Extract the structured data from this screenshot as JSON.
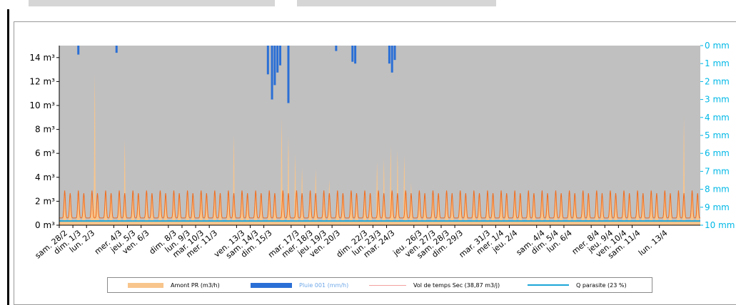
{
  "chart_data": {
    "type": "area",
    "title": "",
    "xlabel": "",
    "ylabel": "",
    "ylim": [
      0,
      15
    ],
    "ylim_secondary": [
      0,
      10
    ],
    "secondary_axis_inverted": true,
    "plot_background": "#c0c0c0",
    "legend_position": "bottom",
    "y_ticks": [
      "0 m³",
      "2 m³",
      "4 m³",
      "6 m³",
      "8 m³",
      "10 m³",
      "12 m³",
      "14 m³"
    ],
    "y_tick_values": [
      0,
      2,
      4,
      6,
      8,
      10,
      12,
      14
    ],
    "y2_ticks": [
      "0 mm",
      "1 mm",
      "2 mm",
      "3 mm",
      "4 mm",
      "5 mm",
      "6 mm",
      "7 mm",
      "8 mm",
      "9 mm",
      "10 mm"
    ],
    "y2_tick_values": [
      0,
      1,
      2,
      3,
      4,
      5,
      6,
      7,
      8,
      9,
      10
    ],
    "x_range_days": 47,
    "x_ticks": [
      {
        "label": "sam. 28/2",
        "day": 0
      },
      {
        "label": "dim. 1/3",
        "day": 1
      },
      {
        "label": "lun. 2/3",
        "day": 2
      },
      {
        "label": "mer. 4/3",
        "day": 4
      },
      {
        "label": "jeu. 5/3",
        "day": 5
      },
      {
        "label": "ven. 6/3",
        "day": 6
      },
      {
        "label": "dim. 8/3",
        "day": 8
      },
      {
        "label": "lun. 9/3",
        "day": 9
      },
      {
        "label": "mar. 10/3",
        "day": 10
      },
      {
        "label": "mer. 11/3",
        "day": 11
      },
      {
        "label": "ven. 13/3",
        "day": 13
      },
      {
        "label": "sam. 14/3",
        "day": 14
      },
      {
        "label": "dim. 15/3",
        "day": 15
      },
      {
        "label": "mar. 17/3",
        "day": 17
      },
      {
        "label": "mer. 18/3",
        "day": 18
      },
      {
        "label": "jeu. 19/3",
        "day": 19
      },
      {
        "label": "ven. 20/3",
        "day": 20
      },
      {
        "label": "dim. 22/3",
        "day": 22
      },
      {
        "label": "lun. 23/3",
        "day": 23
      },
      {
        "label": "mar. 24/3",
        "day": 24
      },
      {
        "label": "jeu. 26/3",
        "day": 26
      },
      {
        "label": "ven. 27/3",
        "day": 27
      },
      {
        "label": "sam. 28/3",
        "day": 28
      },
      {
        "label": "dim. 29/3",
        "day": 29
      },
      {
        "label": "mar. 31/3",
        "day": 31
      },
      {
        "label": "mer. 1/4",
        "day": 32
      },
      {
        "label": "jeu. 2/4",
        "day": 33
      },
      {
        "label": "sam. 4/4",
        "day": 35
      },
      {
        "label": "dim. 5/4",
        "day": 36
      },
      {
        "label": "lun. 6/4",
        "day": 37
      },
      {
        "label": "mer. 8/4",
        "day": 39
      },
      {
        "label": "jeu. 9/4",
        "day": 40
      },
      {
        "label": "ven. 10/4",
        "day": 41
      },
      {
        "label": "sam. 11/4",
        "day": 42
      },
      {
        "label": "lun. 13/4",
        "day": 44
      }
    ],
    "series": [
      {
        "name": "Amont PR (m3/h)",
        "kind": "area",
        "axis": "left",
        "color": "#f8c58c",
        "baseline_daily_peak": 2.9,
        "peaks": [
          {
            "day": 2.6,
            "value": 12.6
          },
          {
            "day": 4.8,
            "value": 7.1
          },
          {
            "day": 12.8,
            "value": 7.6
          },
          {
            "day": 16.3,
            "value": 9.0
          },
          {
            "day": 16.8,
            "value": 7.5
          },
          {
            "day": 17.3,
            "value": 6.0
          },
          {
            "day": 17.8,
            "value": 4.8
          },
          {
            "day": 18.8,
            "value": 4.7
          },
          {
            "day": 19.8,
            "value": 3.8
          },
          {
            "day": 23.3,
            "value": 5.3
          },
          {
            "day": 23.8,
            "value": 5.6
          },
          {
            "day": 24.3,
            "value": 6.6
          },
          {
            "day": 24.8,
            "value": 6.3
          },
          {
            "day": 25.3,
            "value": 5.8
          },
          {
            "day": 25.8,
            "value": 3.6
          },
          {
            "day": 45.8,
            "value": 9.1
          }
        ]
      },
      {
        "name": "Pluie 001 (mm/h)",
        "kind": "bars-from-top",
        "axis": "right",
        "color": "#2a6fd6",
        "events": [
          {
            "day": 1.4,
            "value": 0.5
          },
          {
            "day": 4.2,
            "value": 0.4
          },
          {
            "day": 15.3,
            "value": 1.6
          },
          {
            "day": 15.6,
            "value": 3.0
          },
          {
            "day": 15.8,
            "value": 2.2
          },
          {
            "day": 16.0,
            "value": 1.5
          },
          {
            "day": 16.2,
            "value": 1.1
          },
          {
            "day": 16.8,
            "value": 3.2
          },
          {
            "day": 20.3,
            "value": 0.3
          },
          {
            "day": 21.5,
            "value": 0.9
          },
          {
            "day": 21.7,
            "value": 1.0
          },
          {
            "day": 24.2,
            "value": 1.0
          },
          {
            "day": 24.4,
            "value": 1.5
          },
          {
            "day": 24.6,
            "value": 0.8
          }
        ]
      },
      {
        "name": "Vol de temps Sec (38,87 m3/j)",
        "kind": "line",
        "axis": "left",
        "color": "#f06c1e",
        "daily_peak": 2.9,
        "daily_min": 0.6
      },
      {
        "name": "Q parasite (23 %)",
        "kind": "line",
        "axis": "left",
        "color": "#1ca6d8",
        "value": 0.35
      }
    ]
  }
}
